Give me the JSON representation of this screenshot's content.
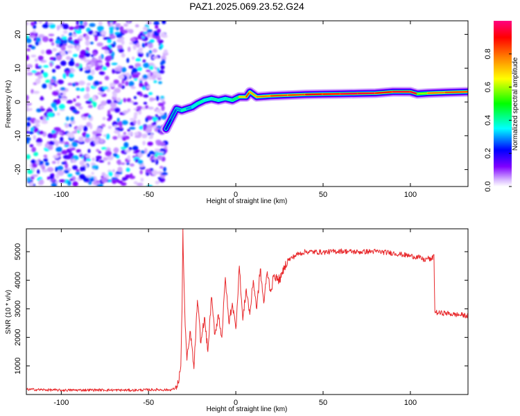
{
  "title": "PAZ1.2025.069.23.52.G24",
  "chart_data": [
    {
      "type": "heatmap",
      "xlabel": "Height of straight line (km)",
      "ylabel": "Frequency (Hz)",
      "xlim": [
        -120,
        133
      ],
      "ylim": [
        -25,
        24
      ],
      "x_ticks": [
        -100,
        -50,
        0,
        50,
        100
      ],
      "y_ticks": [
        -20,
        -10,
        0,
        10,
        20
      ],
      "colorbar": {
        "label": "Normalized spectral amplitude",
        "range": [
          0,
          1
        ],
        "ticks": [
          "0.0",
          "0.2",
          "0.4",
          "0.6",
          "0.8"
        ],
        "tick_values": [
          0.0,
          0.2,
          0.4,
          0.6,
          0.8
        ],
        "colors": [
          "#ffffff",
          "#8000ff",
          "#0000ff",
          "#00ffff",
          "#00ff00",
          "#ffff00",
          "#ff8000",
          "#ff0000",
          "#ff0080"
        ]
      },
      "noise_region": {
        "x_from": -120,
        "x_to": -40,
        "max_amplitude": 0.35
      },
      "ridge": {
        "x": [
          -40,
          -37,
          -34,
          -31,
          -28,
          -25,
          -22,
          -18,
          -14,
          -10,
          -6,
          -2,
          2,
          6,
          8,
          12,
          20,
          30,
          40,
          50,
          60,
          70,
          80,
          90,
          100,
          104,
          110,
          120,
          133
        ],
        "frequency": [
          -8,
          -5,
          -2,
          -2.5,
          -2,
          -1.5,
          -0.5,
          0.5,
          1,
          0.5,
          1,
          0.5,
          1.5,
          1.5,
          3,
          1.5,
          1.8,
          2,
          2.2,
          2.3,
          2.4,
          2.5,
          2.6,
          3.0,
          3.0,
          2.4,
          2.6,
          2.8,
          3.0
        ],
        "amplitude": [
          0.25,
          0.3,
          0.35,
          0.45,
          0.35,
          0.4,
          0.45,
          0.4,
          0.45,
          0.4,
          0.45,
          0.5,
          0.7,
          0.85,
          0.75,
          0.8,
          0.85,
          0.85,
          0.9,
          0.9,
          0.95,
          0.95,
          0.9,
          0.95,
          0.95,
          0.6,
          0.8,
          0.85,
          0.75
        ]
      }
    },
    {
      "type": "line",
      "xlabel": "Height of straight line (km)",
      "ylabel": "SNR (10 * v/v)",
      "xlim": [
        -120,
        133
      ],
      "ylim": [
        0,
        5800
      ],
      "x_ticks": [
        -100,
        -50,
        0,
        50,
        100
      ],
      "y_ticks": [
        1000,
        2000,
        3000,
        4000,
        5000
      ],
      "color": "#e8282b",
      "series": [
        {
          "x": [
            -120,
            -100,
            -80,
            -60,
            -45,
            -38,
            -35,
            -33,
            -31.5,
            -30.8,
            -30.3,
            -30,
            -29.5,
            -29,
            -28,
            -26,
            -24,
            -22,
            -20,
            -18,
            -16,
            -14,
            -12,
            -10,
            -8,
            -6,
            -4,
            -2,
            0,
            2,
            4,
            6,
            8,
            10,
            12,
            14,
            16,
            18,
            20,
            22,
            24,
            26,
            28,
            30,
            35,
            40,
            50,
            60,
            70,
            80,
            90,
            95,
            100,
            105,
            108,
            110,
            112,
            113.5,
            114,
            116,
            120,
            125,
            130,
            133
          ],
          "y": [
            180,
            150,
            160,
            150,
            170,
            160,
            200,
            400,
            1000,
            3000,
            5800,
            4700,
            3500,
            2400,
            1200,
            2200,
            900,
            3300,
            1800,
            2700,
            1500,
            3400,
            2100,
            2800,
            2000,
            4100,
            2500,
            3200,
            2300,
            4500,
            2600,
            3700,
            2800,
            4000,
            3000,
            4400,
            3200,
            4300,
            3600,
            4200,
            4000,
            4100,
            4500,
            4700,
            4900,
            5000,
            4980,
            5020,
            4990,
            5010,
            4950,
            4900,
            4850,
            4800,
            4700,
            4780,
            4700,
            4900,
            2900,
            2850,
            2850,
            2800,
            2780,
            2750
          ]
        }
      ]
    }
  ]
}
